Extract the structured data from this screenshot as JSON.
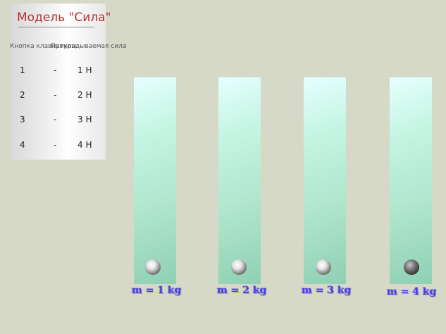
{
  "legend": {
    "title": "Модель \"Сила\"",
    "header_key": "Кнопка клавиатуры",
    "header_force": "Прикладываемая сила",
    "rows": [
      {
        "key": "1",
        "dash": "-",
        "force": "1 Н"
      },
      {
        "key": "2",
        "dash": "-",
        "force": "2 Н"
      },
      {
        "key": "3",
        "dash": "-",
        "force": "3 Н"
      },
      {
        "key": "4",
        "dash": "-",
        "force": "4 Н"
      }
    ]
  },
  "tubes": [
    {
      "mass_label": "m = 1 kg",
      "ball": "light"
    },
    {
      "mass_label": "m = 2 kg",
      "ball": "light"
    },
    {
      "mass_label": "m = 3 kg",
      "ball": "light"
    },
    {
      "mass_label": "m = 4 kg",
      "ball": "dark"
    }
  ]
}
